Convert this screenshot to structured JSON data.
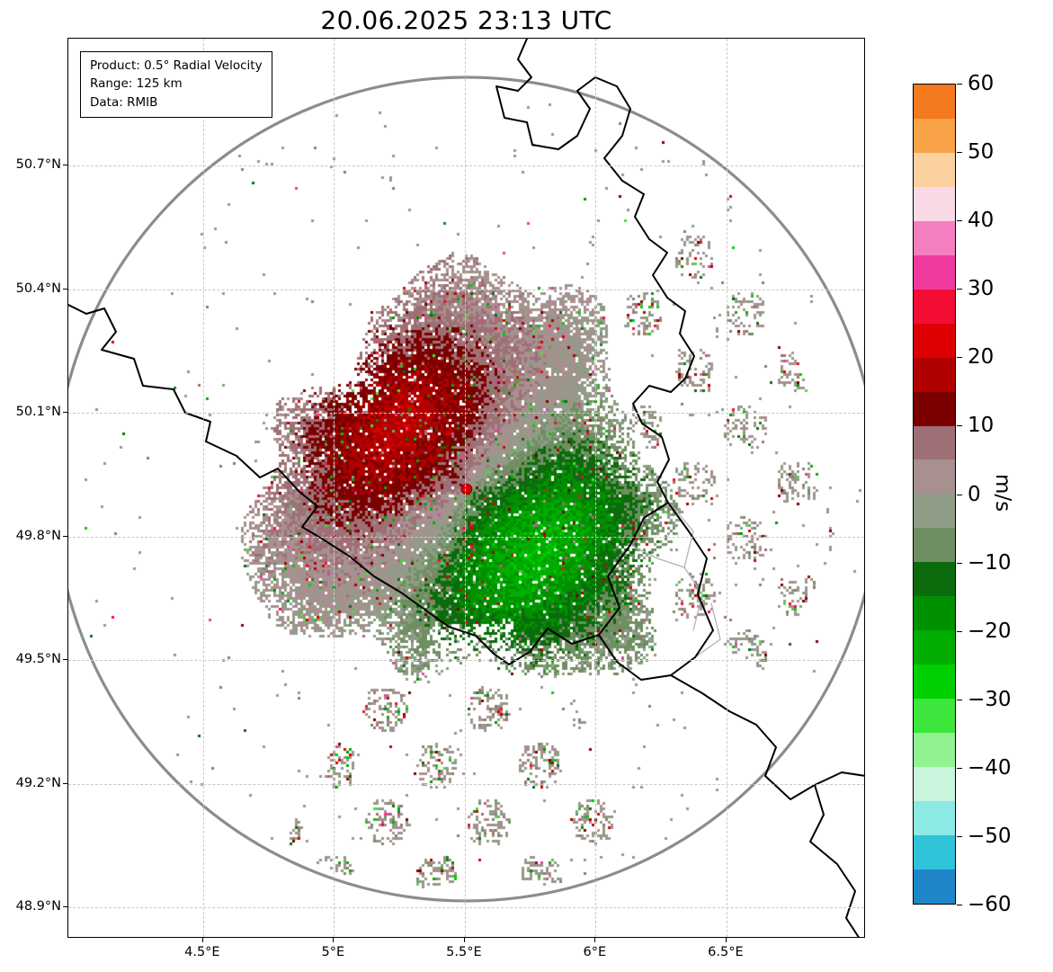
{
  "title": "20.06.2025 23:13 UTC",
  "info_box": {
    "line1": "Product: 0.5° Radial Velocity",
    "line2": "Range: 125 km",
    "line3": "Data: RMIB"
  },
  "axes": {
    "x_range": [
      3.985,
      7.033
    ],
    "y_range": [
      48.824,
      51.008
    ],
    "x_ticks": [
      {
        "label": "4.5°E",
        "value": 4.5
      },
      {
        "label": "5°E",
        "value": 5.0
      },
      {
        "label": "5.5°E",
        "value": 5.5
      },
      {
        "label": "6°E",
        "value": 6.0
      },
      {
        "label": "6.5°E",
        "value": 6.5
      }
    ],
    "y_ticks": [
      {
        "label": "50.7°N",
        "value": 50.7
      },
      {
        "label": "50.4°N",
        "value": 50.4
      },
      {
        "label": "50.1°N",
        "value": 50.1
      },
      {
        "label": "49.8°N",
        "value": 49.8
      },
      {
        "label": "49.5°N",
        "value": 49.5
      },
      {
        "label": "49.2°N",
        "value": 49.2
      },
      {
        "label": "48.9°N",
        "value": 48.9
      }
    ]
  },
  "colorbar": {
    "label": "m/s",
    "top_value": 60,
    "bottom_value": -60,
    "step": 5,
    "ticks": [
      "60",
      "50",
      "40",
      "30",
      "20",
      "10",
      "0",
      "−10",
      "−20",
      "−30",
      "−40",
      "−50",
      "−60"
    ],
    "segment_colors": [
      "#f5791f",
      "#f9a348",
      "#fbd09f",
      "#f9d9e6",
      "#f47fc0",
      "#ef3ba0",
      "#f30d35",
      "#dc0000",
      "#b00000",
      "#7b0000",
      "#9e7076",
      "#a89090",
      "#8f9c86",
      "#6f8f63",
      "#0c6b0c",
      "#009000",
      "#00ad00",
      "#00cf00",
      "#3ce63c",
      "#90f290",
      "#c8f5dc",
      "#8ce9e4",
      "#2ec3d8",
      "#1f86c9"
    ]
  },
  "radar": {
    "site_lon_e": 5.507,
    "site_lat_n": 49.915,
    "range_km": 125,
    "dot_color": "#e60000",
    "dot_edge_color": "#8b0000",
    "ring_color": "#8c8c8c"
  },
  "chart_data": {
    "type": "heatmap",
    "subtype": "doppler_radar_ppi_radial_velocity",
    "title": "20.06.2025 23:13 UTC",
    "product": "0.5° Radial Velocity",
    "range_km": 125,
    "data_source": "RMIB",
    "units": "m/s",
    "value_min": -60,
    "value_max": 60,
    "colorbar_ticks": [
      60,
      50,
      40,
      30,
      20,
      10,
      0,
      -10,
      -20,
      -30,
      -40,
      -50,
      -60
    ],
    "x_axis": {
      "unit": "°E",
      "ticks": [
        4.5,
        5.0,
        5.5,
        6.0,
        6.5
      ],
      "range": [
        3.985,
        7.033
      ]
    },
    "y_axis": {
      "unit": "°N",
      "ticks": [
        50.7,
        50.4,
        50.1,
        49.8,
        49.5,
        49.2,
        48.9
      ],
      "range": [
        48.824,
        51.008
      ]
    },
    "radar_site": {
      "lon_e": 5.507,
      "lat_n": 49.915
    },
    "pattern": "Doppler velocity dipole centered on the radar site: positive radial velocities (mauve to dark red, +2 to +20 m/s) west/northwest of the radar; negative radial velocities (sage to dark green, -2 to -25 m/s) east/southeast; muted ±0-5 m/s fringe around the echo, scattered noisy speckles out to the 125 km range ring",
    "overlays": [
      "national borders (black)",
      "provincial borders (gray)",
      "125 km range ring (gray circle)",
      "radar site marker (red dot)"
    ]
  }
}
